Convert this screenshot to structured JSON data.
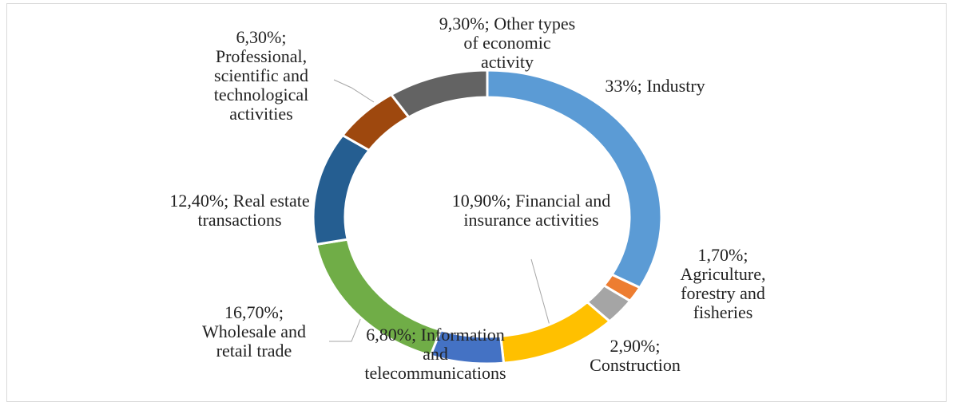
{
  "chart_data": {
    "type": "doughnut",
    "categories": [
      "Industry",
      "Agriculture, forestry and fisheries",
      "Construction",
      "Financial and insurance activities",
      "Information and telecommunications",
      "Wholesale and retail trade",
      "Real estate transactions",
      "Professional, scientific and technological activities",
      "Other types of economic activity"
    ],
    "values": [
      33,
      1.7,
      2.9,
      10.9,
      6.8,
      16.7,
      12.4,
      6.3,
      9.3
    ],
    "value_labels": [
      "33%;",
      "1,70%;",
      "2,90%;",
      "10,90%;",
      "6,80%;",
      "16,70%;",
      "12,40%;",
      "6,30%;",
      "9,30%;"
    ],
    "colors": [
      "#5b9bd5",
      "#ed7d31",
      "#a5a5a5",
      "#ffc000",
      "#4472c4",
      "#70ad47",
      "#255e91",
      "#9e480e",
      "#636363"
    ]
  }
}
